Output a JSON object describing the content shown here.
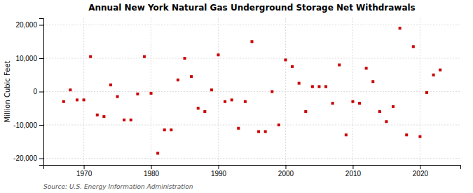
{
  "chart_data": {
    "type": "scatter",
    "title": "Annual New York Natural Gas Underground Storage Net Withdrawals",
    "y_label": "Million Cubic Feet",
    "annotations": [
      "Source: U.S. Energy Information Administration"
    ],
    "color": "#cc0000",
    "marker": "square",
    "grid": true,
    "xlim": [
      1964,
      2026
    ],
    "xticks": [
      1970,
      1980,
      1990,
      2000,
      2010,
      2020
    ],
    "ylim": [
      -22000,
      22000
    ],
    "yticks": [
      {
        "value": -20000,
        "label": "-20,000"
      },
      {
        "value": -10000,
        "label": "-10,000"
      },
      0,
      {
        "value": 10000,
        "label": "10,000"
      },
      {
        "value": 20000,
        "label": "20,000"
      }
    ],
    "x": [
      1967,
      1968,
      1969,
      1970,
      1971,
      1972,
      1973,
      1974,
      1975,
      1976,
      1977,
      1978,
      1979,
      1980,
      1981,
      1982,
      1983,
      1984,
      1985,
      1986,
      1987,
      1988,
      1989,
      1990,
      1991,
      1992,
      1993,
      1994,
      1995,
      1996,
      1997,
      1998,
      1999,
      2000,
      2001,
      2002,
      2003,
      2004,
      2005,
      2006,
      2007,
      2008,
      2009,
      2010,
      2011,
      2012,
      2013,
      2014,
      2015,
      2016,
      2017,
      2018,
      2019,
      2020,
      2021,
      2022,
      2023
    ],
    "values": [
      -3000,
      500,
      -2500,
      -2500,
      10500,
      -7000,
      -7500,
      2000,
      -1500,
      -8500,
      -8500,
      -700,
      10500,
      -500,
      -18500,
      -11500,
      -11500,
      3500,
      10000,
      4500,
      -5000,
      -6000,
      500,
      11000,
      -3000,
      -2500,
      -11000,
      -3000,
      15000,
      -12000,
      -12000,
      0,
      -10000,
      9500,
      7500,
      2500,
      -6000,
      1500,
      1500,
      1500,
      -3500,
      8000,
      -13000,
      -3000,
      -3500,
      7000,
      3000,
      -6000,
      -9000,
      -4500,
      19000,
      -13000,
      13500,
      -13500,
      -300,
      5000,
      6500
    ]
  }
}
